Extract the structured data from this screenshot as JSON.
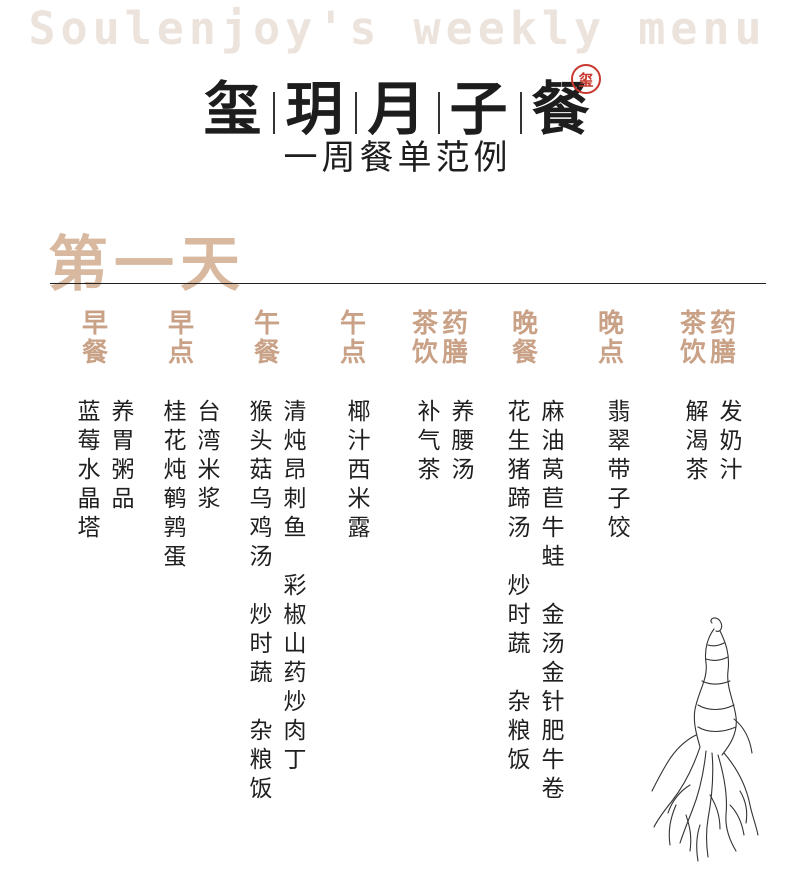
{
  "header": {
    "background_title": "Soulenjoy's weekly menu",
    "brand_chars": [
      "玺",
      "玥",
      "月",
      "子",
      "餐"
    ],
    "seal_char": "玺",
    "subtitle": "一周餐单范例"
  },
  "day_title": "第一天",
  "colors": {
    "accent": "#c9a186",
    "day_title": "#d8b9a0",
    "seal": "#c8382f",
    "bg_title": "#ece3dc"
  },
  "columns": [
    {
      "header_lines": [
        "早餐"
      ],
      "items": [
        [
          "养胃粥品"
        ],
        [
          "蓝莓水晶塔"
        ]
      ]
    },
    {
      "header_lines": [
        "早点"
      ],
      "items": [
        [
          "台湾米浆"
        ],
        [
          "桂花炖鹌鹑蛋"
        ]
      ]
    },
    {
      "header_lines": [
        "午餐"
      ],
      "items": [
        [
          "清炖昂刺鱼",
          "",
          "彩椒山药炒肉丁"
        ],
        [
          "猴头菇乌鸡汤",
          "",
          "炒时蔬",
          "",
          "杂粮饭"
        ]
      ]
    },
    {
      "header_lines": [
        "午点"
      ],
      "items": [
        [
          "椰汁西米露"
        ]
      ]
    },
    {
      "header_lines": [
        "药膳",
        "茶饮"
      ],
      "items": [
        [
          "养腰汤"
        ],
        [
          "补气茶"
        ]
      ]
    },
    {
      "header_lines": [
        "晚餐"
      ],
      "items": [
        [
          "麻油莴苣牛蛙",
          "",
          "金汤金针肥牛卷"
        ],
        [
          "花生猪蹄汤",
          "",
          "炒时蔬",
          "",
          "杂粮饭"
        ]
      ]
    },
    {
      "header_lines": [
        "晚点"
      ],
      "items": [
        [
          "翡翠带子饺"
        ]
      ]
    },
    {
      "header_lines": [
        "药膳",
        "茶饮"
      ],
      "items": [
        [
          "发奶汁"
        ],
        [
          "解渴茶"
        ]
      ]
    }
  ],
  "illustration": "ginseng-root-drawing"
}
